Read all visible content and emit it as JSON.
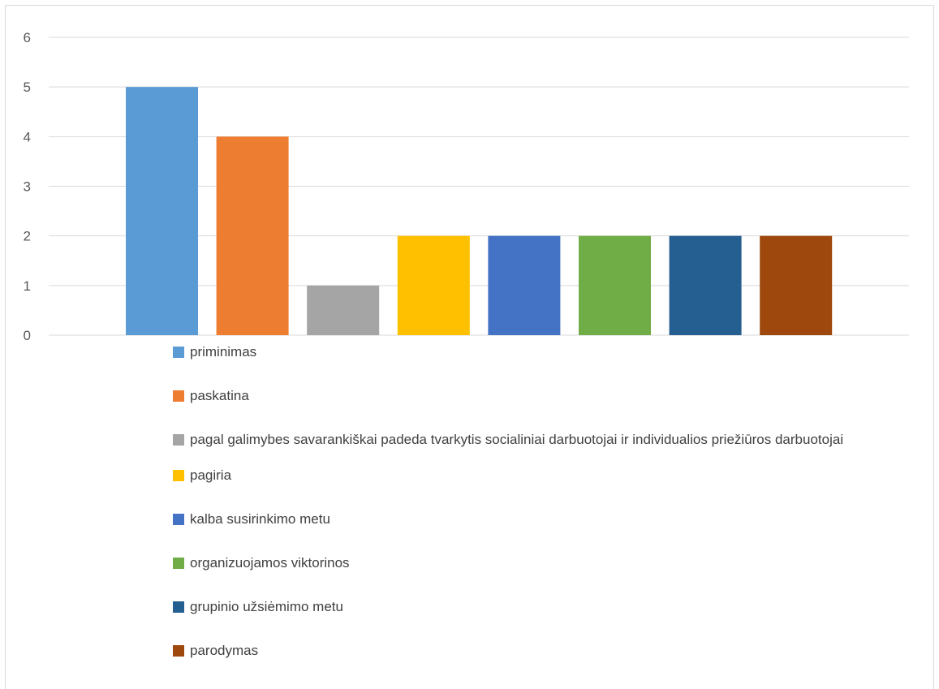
{
  "chart_data": {
    "type": "bar",
    "categories": [
      "priminimas",
      "paskatina",
      "pagal galimybes savarankiškai padeda tvarkytis socialiniai darbuotojai ir individualios priežiūros darbuotojai",
      "pagiria",
      "kalba susirinkimo metu",
      "organizuojamos viktorinos",
      "grupinio užsiėmimo metu",
      "parodymas"
    ],
    "values": [
      5,
      4,
      1,
      2,
      2,
      2,
      2,
      2
    ],
    "colors": [
      "#5b9bd5",
      "#ed7d31",
      "#a5a5a5",
      "#ffc000",
      "#4472c4",
      "#70ad47",
      "#255e91",
      "#9e480e"
    ],
    "ylim": [
      0,
      6
    ],
    "yticks": [
      "0",
      "1",
      "2",
      "3",
      "4",
      "5",
      "6"
    ],
    "grid": true,
    "legend_position": "bottom",
    "title": "",
    "xlabel": "",
    "ylabel": ""
  }
}
